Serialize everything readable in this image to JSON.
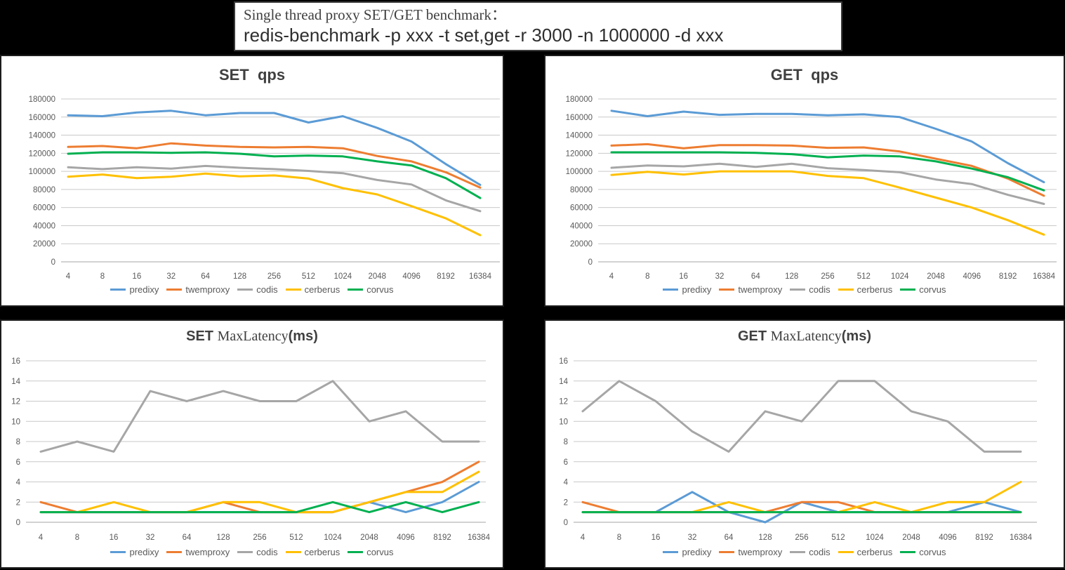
{
  "header": {
    "line1": "Single thread proxy SET/GET benchmark：",
    "line2": "redis-benchmark -p xxx -t set,get -r 3000 -n 1000000 -d xxx"
  },
  "colors": {
    "predixy": "#5B9BD5",
    "twemproxy": "#ED7D31",
    "codis": "#A6A6A6",
    "cerberus": "#FFC000",
    "corvus": "#00B050",
    "grid": "#C9C9C9",
    "axis": "#A6A6A6",
    "tick_label": "#595959",
    "title": "#404040"
  },
  "legend": {
    "items": [
      "predixy",
      "twemproxy",
      "codis",
      "cerberus",
      "corvus"
    ],
    "position": "bottom"
  },
  "categories": [
    "4",
    "8",
    "16",
    "32",
    "64",
    "128",
    "256",
    "512",
    "1024",
    "2048",
    "4096",
    "8192",
    "16384"
  ],
  "chart_data": [
    {
      "id": "set-qps",
      "type": "line",
      "title_parts": [
        {
          "text": "SET  qps",
          "font": "bold-sans"
        }
      ],
      "xlabel": "",
      "ylabel": "",
      "ylim": [
        0,
        180000
      ],
      "ystep": 20000,
      "grid": true,
      "categories": [
        "4",
        "8",
        "16",
        "32",
        "64",
        "128",
        "256",
        "512",
        "1024",
        "2048",
        "4096",
        "8192",
        "16384"
      ],
      "series": [
        {
          "name": "predixy",
          "values": [
            162000,
            161000,
            165000,
            167000,
            162000,
            164500,
            164500,
            154000,
            161000,
            148000,
            133000,
            108000,
            85000
          ]
        },
        {
          "name": "twemproxy",
          "values": [
            127000,
            128000,
            125500,
            131000,
            128500,
            127000,
            126500,
            127000,
            125500,
            117000,
            111000,
            99000,
            82000
          ]
        },
        {
          "name": "codis",
          "values": [
            104500,
            102500,
            104500,
            103000,
            106000,
            104000,
            102500,
            100500,
            98000,
            90500,
            85500,
            68000,
            56000
          ]
        },
        {
          "name": "cerberus",
          "values": [
            94000,
            96500,
            92500,
            94000,
            97500,
            94500,
            95500,
            92000,
            81500,
            74500,
            61500,
            48000,
            29500
          ]
        },
        {
          "name": "corvus",
          "values": [
            119500,
            121000,
            121000,
            120500,
            121000,
            119500,
            116500,
            117500,
            116500,
            111000,
            106500,
            92500,
            70500
          ]
        }
      ]
    },
    {
      "id": "get-qps",
      "type": "line",
      "title_parts": [
        {
          "text": "GET  qps",
          "font": "bold-sans"
        }
      ],
      "xlabel": "",
      "ylabel": "",
      "ylim": [
        0,
        180000
      ],
      "ystep": 20000,
      "grid": true,
      "categories": [
        "4",
        "8",
        "16",
        "32",
        "64",
        "128",
        "256",
        "512",
        "1024",
        "2048",
        "4096",
        "8192",
        "16384"
      ],
      "series": [
        {
          "name": "predixy",
          "values": [
            167000,
            161000,
            166000,
            162500,
            163500,
            163500,
            162000,
            163000,
            160000,
            147000,
            133000,
            109000,
            88000
          ]
        },
        {
          "name": "twemproxy",
          "values": [
            128500,
            130000,
            125500,
            129000,
            129000,
            128500,
            126000,
            126500,
            122000,
            114000,
            106000,
            92000,
            73000
          ]
        },
        {
          "name": "codis",
          "values": [
            104000,
            106500,
            105500,
            108500,
            105000,
            108500,
            103500,
            101500,
            99000,
            91000,
            86000,
            74000,
            64000
          ]
        },
        {
          "name": "cerberus",
          "values": [
            96000,
            99500,
            96500,
            100000,
            100000,
            100000,
            95000,
            92500,
            82000,
            71000,
            60000,
            46000,
            30000
          ]
        },
        {
          "name": "corvus",
          "values": [
            121000,
            121000,
            121000,
            121000,
            120500,
            119000,
            115500,
            117500,
            116500,
            111000,
            103000,
            93500,
            79000
          ]
        }
      ]
    },
    {
      "id": "set-maxlatency",
      "type": "line",
      "title_parts": [
        {
          "text": "SET ",
          "font": "bold-sans"
        },
        {
          "text": "MaxLatency",
          "font": "serif"
        },
        {
          "text": "(ms)",
          "font": "bold-sans"
        }
      ],
      "xlabel": "",
      "ylabel": "",
      "ylim": [
        0,
        16
      ],
      "ystep": 2,
      "grid": true,
      "categories": [
        "4",
        "8",
        "16",
        "32",
        "64",
        "128",
        "256",
        "512",
        "1024",
        "2048",
        "4096",
        "8192",
        "16384"
      ],
      "series": [
        {
          "name": "predixy",
          "values": [
            1,
            1,
            1,
            1,
            1,
            1,
            1,
            1,
            1,
            2,
            1,
            2,
            4
          ]
        },
        {
          "name": "twemproxy",
          "values": [
            2,
            1,
            1,
            1,
            1,
            2,
            1,
            1,
            1,
            2,
            3,
            4,
            6
          ]
        },
        {
          "name": "codis",
          "values": [
            7,
            8,
            7,
            13,
            12,
            13,
            12,
            12,
            14,
            10,
            11,
            8,
            8
          ]
        },
        {
          "name": "cerberus",
          "values": [
            1,
            1,
            2,
            1,
            1,
            2,
            2,
            1,
            1,
            2,
            3,
            3,
            5
          ]
        },
        {
          "name": "corvus",
          "values": [
            1,
            1,
            1,
            1,
            1,
            1,
            1,
            1,
            2,
            1,
            2,
            1,
            2
          ]
        }
      ]
    },
    {
      "id": "get-maxlatency",
      "type": "line",
      "title_parts": [
        {
          "text": "GET ",
          "font": "bold-sans"
        },
        {
          "text": "MaxLatency",
          "font": "serif"
        },
        {
          "text": "(ms)",
          "font": "bold-sans"
        }
      ],
      "xlabel": "",
      "ylabel": "",
      "ylim": [
        0,
        16
      ],
      "ystep": 2,
      "grid": true,
      "categories": [
        "4",
        "8",
        "16",
        "32",
        "64",
        "128",
        "256",
        "512",
        "1024",
        "2048",
        "4096",
        "8192",
        "16384"
      ],
      "series": [
        {
          "name": "predixy",
          "values": [
            1,
            1,
            1,
            3,
            1,
            0,
            2,
            1,
            1,
            1,
            1,
            2,
            1
          ]
        },
        {
          "name": "twemproxy",
          "values": [
            2,
            1,
            1,
            1,
            1,
            1,
            2,
            2,
            1,
            1,
            1,
            1,
            1
          ]
        },
        {
          "name": "codis",
          "values": [
            11,
            14,
            12,
            9,
            7,
            11,
            10,
            14,
            14,
            11,
            10,
            7,
            7
          ]
        },
        {
          "name": "cerberus",
          "values": [
            1,
            1,
            1,
            1,
            2,
            1,
            1,
            1,
            2,
            1,
            2,
            2,
            4
          ]
        },
        {
          "name": "corvus",
          "values": [
            1,
            1,
            1,
            1,
            1,
            1,
            1,
            1,
            1,
            1,
            1,
            1,
            1
          ]
        }
      ]
    }
  ]
}
